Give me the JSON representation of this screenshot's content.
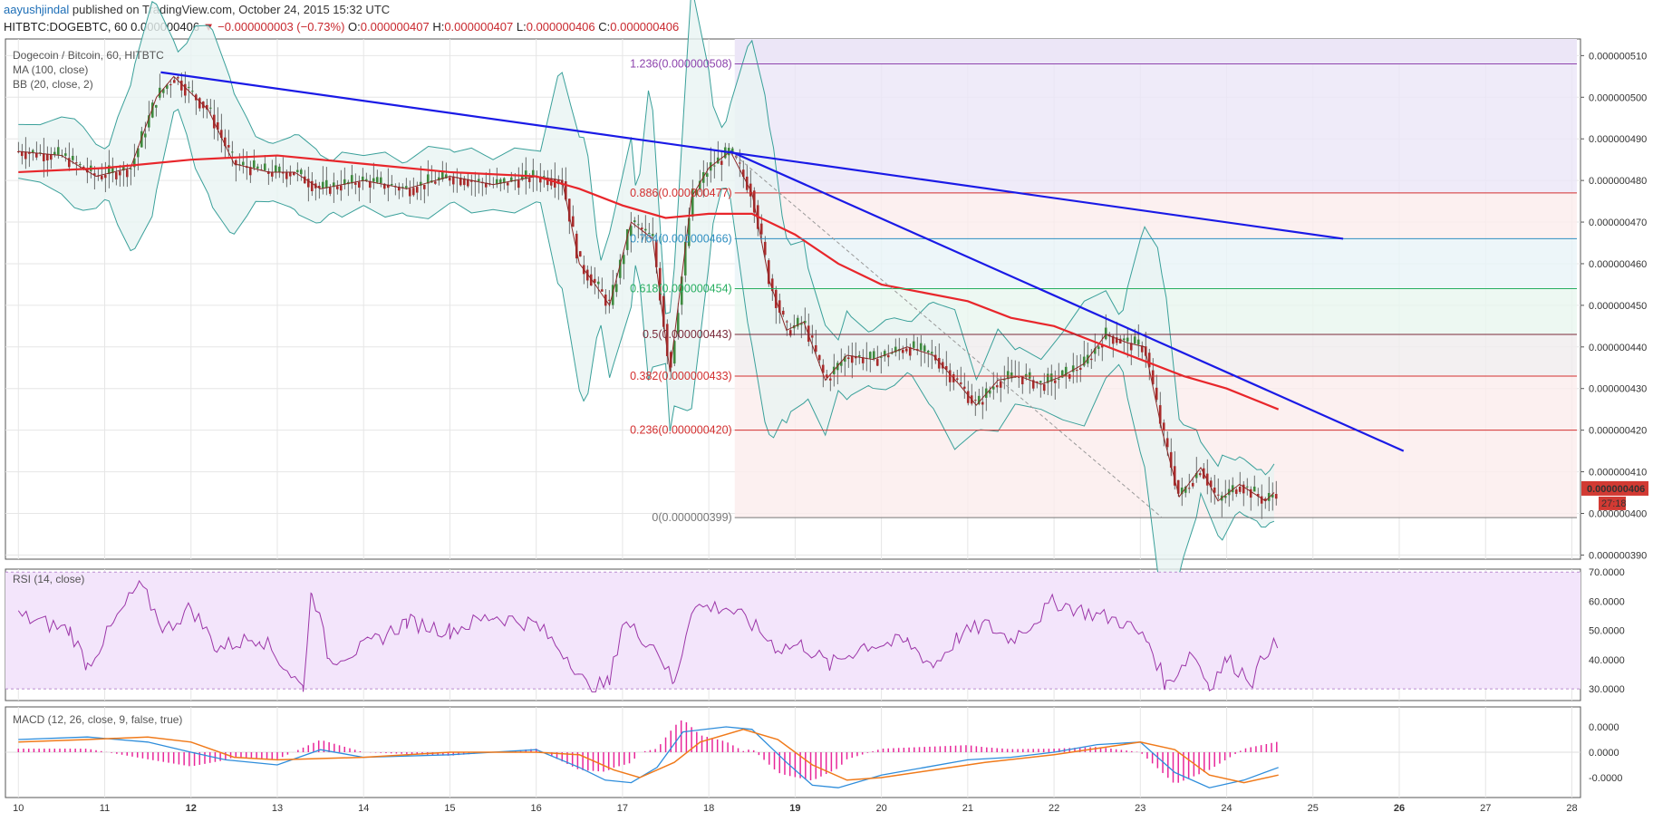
{
  "header": {
    "author": "aayushjindal",
    "published_text": " published on TradingView.com, October 24, 2015 15:32 UTC",
    "symbol_line": "HITBTC:DOGEBTC, 60",
    "last": "0.000000406",
    "change": "▼ −0.000000003 (−0.73%)",
    "o_label": "O:",
    "o": "0.000000407",
    "h_label": "H:",
    "h": "0.000000407",
    "l_label": "L:",
    "l": "0.000000406",
    "c_label": "C:",
    "c": "0.000000406"
  },
  "legend": {
    "title": "Dogecoin / Bitcoin, 60, HITBTC",
    "ma": "MA (100, close)",
    "bb": "BB (20, close, 2)",
    "rsi": "RSI (14, close)",
    "macd": "MACD (12, 26, close, 9, false, true)"
  },
  "colors": {
    "bull": "#3e8a3e",
    "bear": "#a92b2b",
    "ma": "#e8262b",
    "ma_fast": "#8b2a2a",
    "bb_band": "#3aa09a",
    "bb_fill": "#e8f4f3",
    "trendline": "#1a1ae6",
    "rsi_line": "#9c36a8",
    "rsi_bg": "#f3e5fb",
    "macd_line": "#2e8ddb",
    "signal_line": "#f07a1a",
    "hist": "#e8279a",
    "price_tag": "#d23a33"
  },
  "price_tag": {
    "price": "0.000000406",
    "countdown": "27:18"
  },
  "chart_data": [
    {
      "type": "candlestick",
      "title": "Dogecoin / Bitcoin, 60, HITBTC",
      "x_ticks": [
        "10",
        "11",
        "12",
        "13",
        "14",
        "15",
        "16",
        "17",
        "18",
        "19",
        "20",
        "21",
        "22",
        "23",
        "24",
        "25",
        "26",
        "27",
        "28"
      ],
      "x_range_days": [
        9.85,
        28.1
      ],
      "y_ticks": [
        "0.000000510",
        "0.000000500",
        "0.000000490",
        "0.000000480",
        "0.000000470",
        "0.000000460",
        "0.000000450",
        "0.000000440",
        "0.000000430",
        "0.000000420",
        "0.000000410",
        "0.000000400",
        "0.000000390"
      ],
      "y_range_nano": [
        389,
        514
      ],
      "close_path_nano": [
        [
          10.0,
          487
        ],
        [
          10.5,
          486
        ],
        [
          10.9,
          481
        ],
        [
          11.3,
          483
        ],
        [
          11.6,
          500
        ],
        [
          11.8,
          505
        ],
        [
          12.2,
          497
        ],
        [
          12.5,
          484
        ],
        [
          12.9,
          482
        ],
        [
          13.2,
          482
        ],
        [
          13.5,
          478
        ],
        [
          14.0,
          480
        ],
        [
          14.5,
          478
        ],
        [
          15.0,
          481
        ],
        [
          15.5,
          479
        ],
        [
          16.0,
          481
        ],
        [
          16.3,
          480
        ],
        [
          16.5,
          460
        ],
        [
          16.65,
          456
        ],
        [
          16.85,
          450
        ],
        [
          17.1,
          470
        ],
        [
          17.35,
          466
        ],
        [
          17.55,
          434
        ],
        [
          17.8,
          476
        ],
        [
          18.0,
          483
        ],
        [
          18.25,
          487
        ],
        [
          18.5,
          477
        ],
        [
          18.7,
          456
        ],
        [
          18.9,
          444
        ],
        [
          19.1,
          446
        ],
        [
          19.35,
          432
        ],
        [
          19.6,
          438
        ],
        [
          19.9,
          437
        ],
        [
          20.3,
          440
        ],
        [
          20.6,
          438
        ],
        [
          20.9,
          431
        ],
        [
          21.1,
          426
        ],
        [
          21.35,
          432
        ],
        [
          21.6,
          433
        ],
        [
          21.85,
          431
        ],
        [
          22.1,
          433
        ],
        [
          22.35,
          436
        ],
        [
          22.6,
          443
        ],
        [
          22.85,
          441
        ],
        [
          23.05,
          440
        ],
        [
          23.25,
          420
        ],
        [
          23.45,
          404
        ],
        [
          23.7,
          411
        ],
        [
          23.9,
          403
        ],
        [
          24.15,
          407
        ],
        [
          24.45,
          403
        ],
        [
          24.6,
          406
        ]
      ]
    },
    {
      "type": "line",
      "name": "MA (100, close)",
      "points_nano": [
        [
          10.0,
          482
        ],
        [
          11.0,
          483
        ],
        [
          12.0,
          485
        ],
        [
          13.0,
          486
        ],
        [
          14.0,
          484
        ],
        [
          15.0,
          482
        ],
        [
          16.0,
          481
        ],
        [
          16.5,
          478
        ],
        [
          17.0,
          474
        ],
        [
          17.5,
          471
        ],
        [
          18.0,
          472
        ],
        [
          18.5,
          472
        ],
        [
          19.0,
          467
        ],
        [
          19.5,
          460
        ],
        [
          20.0,
          455
        ],
        [
          20.5,
          453
        ],
        [
          21.0,
          451
        ],
        [
          21.5,
          447
        ],
        [
          22.0,
          445
        ],
        [
          22.5,
          441
        ],
        [
          23.0,
          437
        ],
        [
          23.5,
          433
        ],
        [
          24.0,
          430
        ],
        [
          24.6,
          425
        ]
      ]
    },
    {
      "type": "fibonacci",
      "levels": [
        {
          "label": "1.236(0.000000508)",
          "value": 508,
          "color": "#8e44ad"
        },
        {
          "label": "0.886(0.000000477)",
          "value": 477,
          "color": "#d32f2f"
        },
        {
          "label": "0.764(0.000000466)",
          "value": 466,
          "color": "#2e8ec0"
        },
        {
          "label": "0.618(0.000000454)",
          "value": 454,
          "color": "#27ae60"
        },
        {
          "label": "0.5(0.000000443)",
          "value": 443,
          "color": "#7a2a3a"
        },
        {
          "label": "0.382(0.000000433)",
          "value": 433,
          "color": "#d32f2f"
        },
        {
          "label": "0.236(0.000000420)",
          "value": 420,
          "color": "#d32f2f"
        },
        {
          "label": "0(0.000000399)",
          "value": 399,
          "color": "#777777"
        }
      ]
    },
    {
      "type": "trendlines",
      "lines": [
        {
          "from": [
            11.65,
            506
          ],
          "to": [
            25.35,
            466
          ]
        },
        {
          "from": [
            18.25,
            487
          ],
          "to": [
            26.05,
            415
          ]
        }
      ]
    },
    {
      "type": "line",
      "name": "RSI (14, close)",
      "y_ticks": [
        "70.0000",
        "60.0000",
        "50.0000",
        "40.0000",
        "30.0000"
      ],
      "y_range": [
        26,
        71
      ],
      "band": [
        30,
        70
      ],
      "points": [
        [
          10.0,
          55
        ],
        [
          10.6,
          50
        ],
        [
          10.8,
          38
        ],
        [
          11.1,
          52
        ],
        [
          11.4,
          66
        ],
        [
          11.7,
          50
        ],
        [
          12.0,
          58
        ],
        [
          12.3,
          44
        ],
        [
          12.8,
          48
        ],
        [
          13.3,
          30
        ],
        [
          13.4,
          65
        ],
        [
          13.6,
          40
        ],
        [
          14.0,
          44
        ],
        [
          14.5,
          53
        ],
        [
          15.0,
          50
        ],
        [
          15.5,
          55
        ],
        [
          16.0,
          52
        ],
        [
          16.4,
          40
        ],
        [
          16.6,
          30
        ],
        [
          16.85,
          32
        ],
        [
          17.0,
          53
        ],
        [
          17.4,
          44
        ],
        [
          17.6,
          31
        ],
        [
          17.8,
          58
        ],
        [
          18.2,
          58
        ],
        [
          18.5,
          52
        ],
        [
          18.8,
          44
        ],
        [
          19.1,
          45
        ],
        [
          19.4,
          38
        ],
        [
          19.8,
          45
        ],
        [
          20.3,
          46
        ],
        [
          20.6,
          38
        ],
        [
          20.9,
          48
        ],
        [
          21.2,
          52
        ],
        [
          21.5,
          47
        ],
        [
          21.8,
          54
        ],
        [
          22.0,
          60
        ],
        [
          22.4,
          56
        ],
        [
          22.8,
          53
        ],
        [
          23.1,
          46
        ],
        [
          23.3,
          31
        ],
        [
          23.6,
          43
        ],
        [
          23.8,
          31
        ],
        [
          24.0,
          40
        ],
        [
          24.3,
          33
        ],
        [
          24.5,
          45
        ],
        [
          24.6,
          44
        ]
      ]
    },
    {
      "type": "line",
      "name": "MACD (12, 26, close, 9, false, true)",
      "y_ticks": [
        "0.0000",
        "0.0000",
        "-0.0000"
      ],
      "macd_points": [
        [
          10.0,
          0.5
        ],
        [
          10.8,
          0.6
        ],
        [
          11.5,
          0.4
        ],
        [
          12.0,
          0.0
        ],
        [
          12.4,
          -0.3
        ],
        [
          13.0,
          -0.5
        ],
        [
          13.5,
          0.1
        ],
        [
          14.0,
          -0.2
        ],
        [
          15.0,
          -0.1
        ],
        [
          16.0,
          0.1
        ],
        [
          16.5,
          -0.6
        ],
        [
          16.8,
          -1.1
        ],
        [
          17.1,
          -1.2
        ],
        [
          17.4,
          -0.6
        ],
        [
          17.7,
          0.8
        ],
        [
          18.2,
          1.0
        ],
        [
          18.5,
          0.9
        ],
        [
          18.9,
          -0.4
        ],
        [
          19.2,
          -1.3
        ],
        [
          19.5,
          -1.4
        ],
        [
          20.0,
          -0.9
        ],
        [
          20.5,
          -0.6
        ],
        [
          21.0,
          -0.3
        ],
        [
          21.5,
          -0.2
        ],
        [
          22.0,
          0.0
        ],
        [
          22.5,
          0.3
        ],
        [
          23.0,
          0.4
        ],
        [
          23.4,
          -0.8
        ],
        [
          23.8,
          -1.4
        ],
        [
          24.2,
          -1.1
        ],
        [
          24.6,
          -0.6
        ]
      ],
      "signal_points": [
        [
          10.0,
          0.4
        ],
        [
          10.8,
          0.5
        ],
        [
          11.5,
          0.6
        ],
        [
          12.0,
          0.4
        ],
        [
          12.5,
          -0.2
        ],
        [
          13.0,
          -0.3
        ],
        [
          14.0,
          -0.2
        ],
        [
          15.0,
          0.0
        ],
        [
          16.0,
          0.0
        ],
        [
          16.5,
          -0.1
        ],
        [
          16.9,
          -0.7
        ],
        [
          17.2,
          -1.0
        ],
        [
          17.6,
          -0.4
        ],
        [
          17.9,
          0.4
        ],
        [
          18.4,
          0.9
        ],
        [
          18.8,
          0.5
        ],
        [
          19.2,
          -0.5
        ],
        [
          19.6,
          -1.1
        ],
        [
          20.0,
          -1.0
        ],
        [
          20.6,
          -0.7
        ],
        [
          21.2,
          -0.4
        ],
        [
          22.0,
          -0.1
        ],
        [
          22.6,
          0.2
        ],
        [
          23.0,
          0.4
        ],
        [
          23.4,
          0.1
        ],
        [
          23.8,
          -0.9
        ],
        [
          24.2,
          -1.2
        ],
        [
          24.6,
          -0.9
        ]
      ]
    }
  ]
}
